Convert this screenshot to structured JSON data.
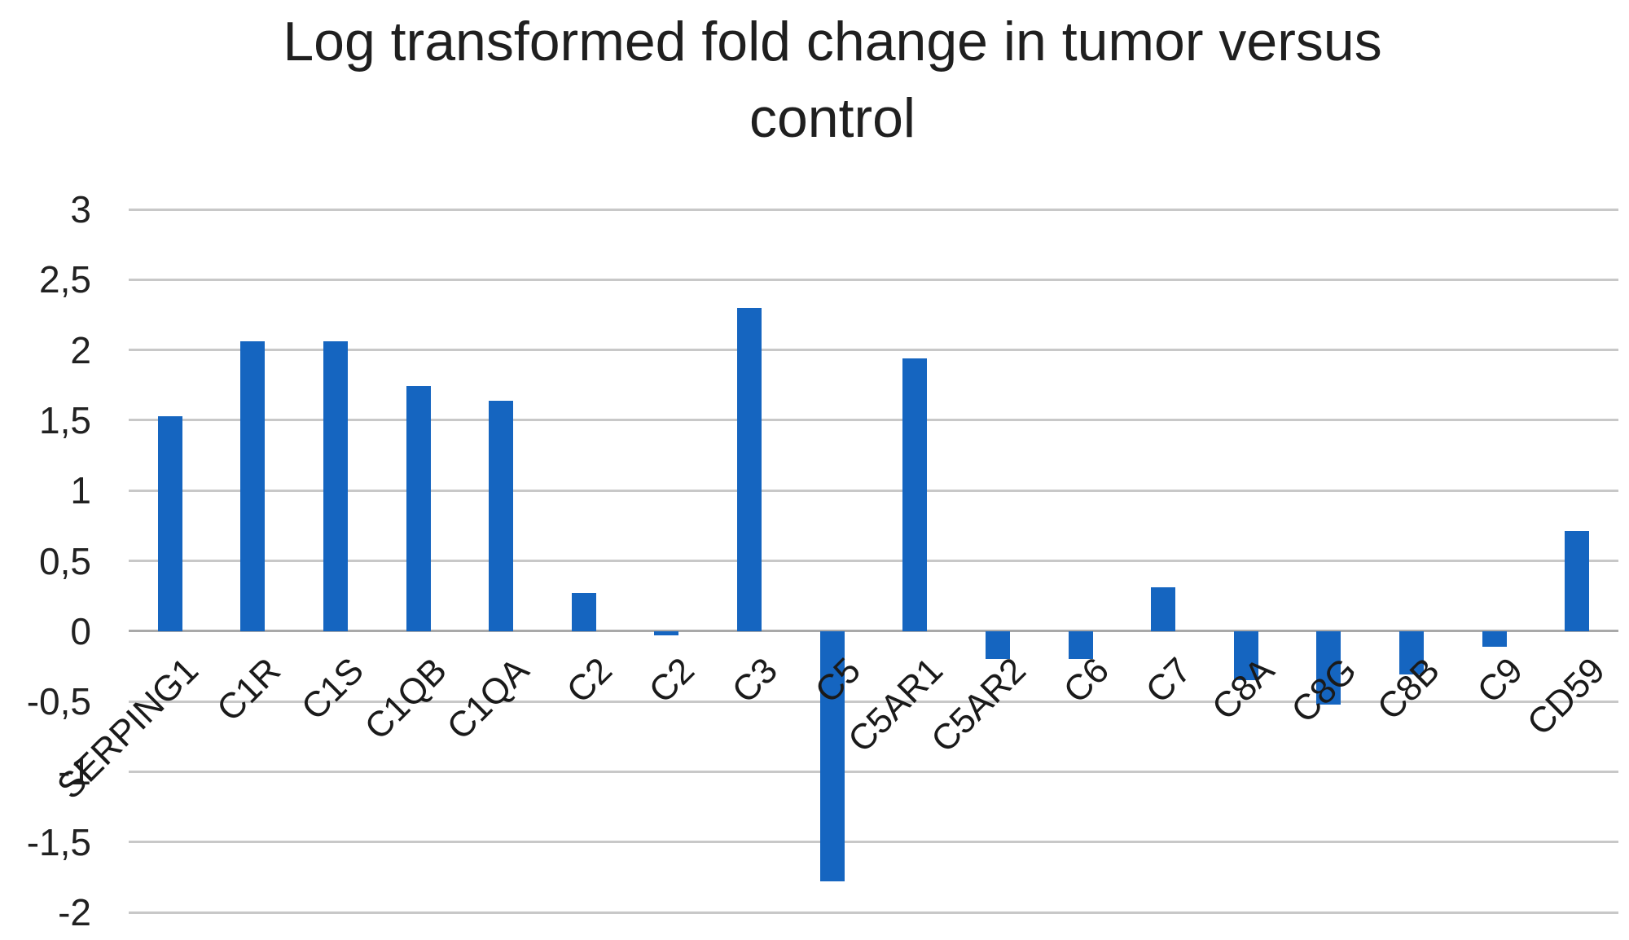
{
  "title": "Log transformed fold change in tumor versus control",
  "title_lines": [
    "Log transformed fold change in tumor versus",
    "control"
  ],
  "chart_data": {
    "type": "bar",
    "title": "Log transformed fold change in tumor versus control",
    "xlabel": "",
    "ylabel": "",
    "categories": [
      "SERPING1",
      "C1R",
      "C1S",
      "C1QB",
      "C1QA",
      "C2",
      "C2",
      "C3",
      "C5",
      "C5AR1",
      "C5AR2",
      "C6",
      "C7",
      "C8A",
      "C8G",
      "C8B",
      "C9",
      "CD59"
    ],
    "values": [
      1.53,
      2.06,
      2.06,
      1.74,
      1.64,
      0.27,
      -0.03,
      2.3,
      -1.78,
      1.94,
      -0.2,
      -0.2,
      0.31,
      -0.35,
      -0.52,
      -0.31,
      -0.11,
      0.71
    ],
    "ylim": [
      -2,
      3
    ],
    "ytick_step": 0.5,
    "y_tick_labels": [
      "3",
      "2,5",
      "2",
      "1,5",
      "1",
      "0,5",
      "0",
      "-0,5",
      "-1",
      "-1,5",
      "-2"
    ],
    "decimal_separator": ",",
    "grid": true,
    "legend_position": "none",
    "bar_color": "#1565C0",
    "gridline_color": "#C8C8C8",
    "zero_line_color": "#A9A9A9",
    "text_color": "#1f1f1f",
    "background_color": "#FFFFFF"
  }
}
